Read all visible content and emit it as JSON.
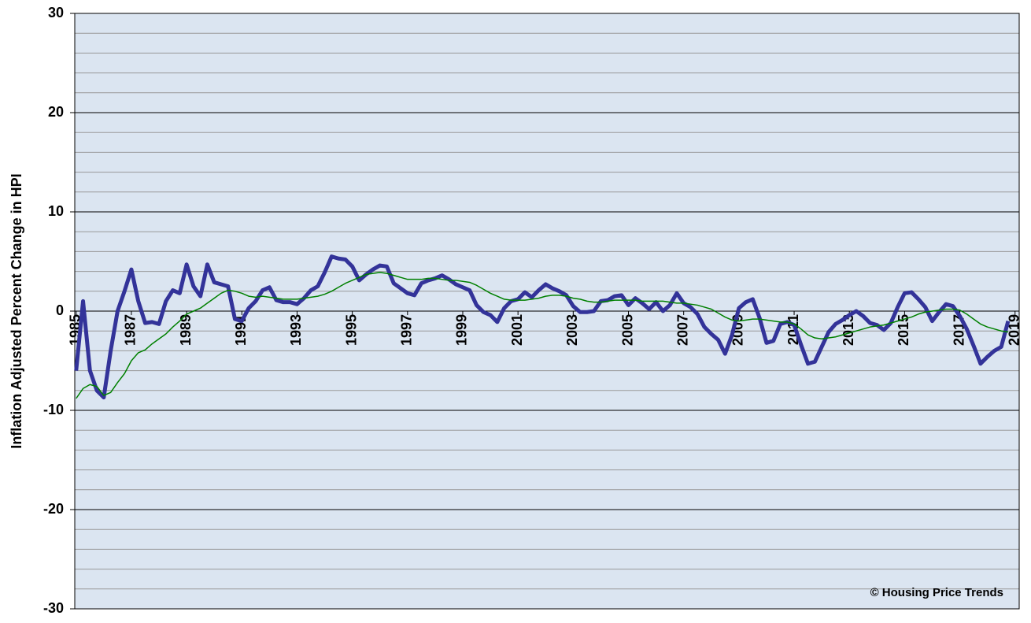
{
  "chart_data": {
    "type": "line",
    "y_label": "Inflation Adjusted Percent Change in HPI",
    "annotation": "© Housing Price Trends",
    "x": [
      1985,
      1985.25,
      1985.5,
      1985.75,
      1986,
      1986.25,
      1986.5,
      1986.75,
      1987,
      1987.25,
      1987.5,
      1987.75,
      1988,
      1988.25,
      1988.5,
      1988.75,
      1989,
      1989.25,
      1989.5,
      1989.75,
      1990,
      1990.25,
      1990.5,
      1990.75,
      1991,
      1991.25,
      1991.5,
      1991.75,
      1992,
      1992.25,
      1992.5,
      1992.75,
      1993,
      1993.25,
      1993.5,
      1993.75,
      1994,
      1994.25,
      1994.5,
      1994.75,
      1995,
      1995.25,
      1995.5,
      1995.75,
      1996,
      1996.25,
      1996.5,
      1996.75,
      1997,
      1997.25,
      1997.5,
      1997.75,
      1998,
      1998.25,
      1998.5,
      1998.75,
      1999,
      1999.25,
      1999.5,
      1999.75,
      2000,
      2000.25,
      2000.5,
      2000.75,
      2001,
      2001.25,
      2001.5,
      2001.75,
      2002,
      2002.25,
      2002.5,
      2002.75,
      2003,
      2003.25,
      2003.5,
      2003.75,
      2004,
      2004.25,
      2004.5,
      2004.75,
      2005,
      2005.25,
      2005.5,
      2005.75,
      2006,
      2006.25,
      2006.5,
      2006.75,
      2007,
      2007.25,
      2007.5,
      2007.75,
      2008,
      2008.25,
      2008.5,
      2008.75,
      2009,
      2009.25,
      2009.5,
      2009.75,
      2010,
      2010.25,
      2010.5,
      2010.75,
      2011,
      2011.25,
      2011.5,
      2011.75,
      2012,
      2012.25,
      2012.5,
      2012.75,
      2013,
      2013.25,
      2013.5,
      2013.75,
      2014,
      2014.25,
      2014.5,
      2014.75,
      2015,
      2015.25,
      2015.5,
      2015.75,
      2016,
      2016.25,
      2016.5,
      2016.75,
      2017,
      2017.25,
      2017.5,
      2017.75,
      2018,
      2018.25,
      2018.5,
      2018.75
    ],
    "series": [
      {
        "color": "#333399",
        "width": 5,
        "values": [
          -6,
          1,
          -6,
          -8,
          -8.7,
          -4,
          0,
          2,
          4.2,
          1,
          -1.2,
          -1.1,
          -1.3,
          1,
          2.1,
          1.8,
          4.7,
          2.5,
          1.5,
          4.7,
          2.9,
          2.7,
          2.5,
          -0.8,
          -1,
          0.3,
          1,
          2.1,
          2.4,
          1.1,
          0.9,
          0.9,
          0.7,
          1.3,
          2.1,
          2.5,
          3.9,
          5.5,
          5.3,
          5.2,
          4.5,
          3.1,
          3.7,
          4.2,
          4.6,
          4.5,
          2.8,
          2.3,
          1.8,
          1.6,
          2.8,
          3.1,
          3.3,
          3.6,
          3.2,
          2.7,
          2.4,
          2.1,
          0.6,
          -0.1,
          -0.4,
          -1.1,
          0.3,
          1,
          1.2,
          1.9,
          1.4,
          2.1,
          2.7,
          2.3,
          2,
          1.6,
          0.5,
          -0.1,
          -0.1,
          0,
          1,
          1.1,
          1.5,
          1.6,
          0.6,
          1.3,
          0.8,
          0.2,
          0.9,
          0,
          0.6,
          1.8,
          0.8,
          0.4,
          -0.3,
          -1.6,
          -2.3,
          -2.9,
          -4.3,
          -2.4,
          0.3,
          0.9,
          1.2,
          -0.7,
          -3.2,
          -3,
          -1.3,
          -1.1,
          -1.4,
          -3.4,
          -5.3,
          -5.1,
          -3.6,
          -2.1,
          -1.3,
          -0.9,
          -0.4,
          0,
          -0.5,
          -1.2,
          -1.4,
          -1.9,
          -1.2,
          0.4,
          1.8,
          1.9,
          1.2,
          0.4,
          -1,
          -0.1,
          0.7,
          0.5,
          -0.5,
          -1.8,
          -3.5,
          -5.3,
          -4.6,
          -4,
          -3.6,
          -1
        ]
      },
      {
        "color": "#008000",
        "width": 1.5,
        "values": [
          -8.8,
          -7.8,
          -7.4,
          -7.6,
          -8.5,
          -8.2,
          -7.2,
          -6.3,
          -5,
          -4.2,
          -3.9,
          -3.3,
          -2.8,
          -2.3,
          -1.6,
          -1,
          -0.3,
          0,
          0.3,
          0.8,
          1.3,
          1.8,
          2.1,
          2,
          1.8,
          1.5,
          1.4,
          1.5,
          1.4,
          1.3,
          1.2,
          1.2,
          1.2,
          1.3,
          1.4,
          1.5,
          1.7,
          2,
          2.4,
          2.8,
          3.1,
          3.4,
          3.7,
          3.8,
          3.9,
          3.8,
          3.6,
          3.4,
          3.2,
          3.2,
          3.2,
          3.3,
          3.3,
          3.2,
          3.1,
          3.1,
          3,
          2.9,
          2.6,
          2.2,
          1.8,
          1.5,
          1.2,
          1.1,
          1.1,
          1.1,
          1.2,
          1.3,
          1.5,
          1.6,
          1.6,
          1.5,
          1.3,
          1.2,
          1,
          0.9,
          0.9,
          1,
          1.1,
          1.1,
          1.1,
          1.1,
          1,
          1,
          1,
          1,
          0.9,
          0.8,
          0.8,
          0.7,
          0.6,
          0.4,
          0.2,
          -0.2,
          -0.6,
          -0.9,
          -1,
          -0.9,
          -0.8,
          -0.8,
          -0.9,
          -1,
          -1.1,
          -1.1,
          -1.3,
          -1.8,
          -2.4,
          -2.7,
          -2.8,
          -2.7,
          -2.6,
          -2.4,
          -2.2,
          -2,
          -1.8,
          -1.6,
          -1.5,
          -1.4,
          -1.2,
          -1,
          -0.8,
          -0.6,
          -0.3,
          -0.1,
          0,
          0.1,
          0.2,
          0.2,
          0.1,
          -0.3,
          -0.8,
          -1.3,
          -1.6,
          -1.8,
          -2,
          -2.1
        ]
      }
    ],
    "xlim": [
      1984.95,
      2019.15
    ],
    "xticks": [
      1985,
      1987,
      1989,
      1991,
      1993,
      1995,
      1997,
      1999,
      2001,
      2003,
      2005,
      2007,
      2009,
      2011,
      2013,
      2015,
      2017,
      2019
    ],
    "ylim": [
      -30,
      30
    ],
    "yticks": [
      -30,
      -20,
      -10,
      0,
      10,
      20,
      30
    ],
    "yminor": [
      -28,
      -26,
      -24,
      -22,
      -18,
      -16,
      -14,
      -12,
      -8,
      -6,
      -4,
      -2,
      2,
      4,
      6,
      8,
      12,
      14,
      16,
      18,
      22,
      24,
      26,
      28
    ],
    "background": "#dbe5f1",
    "grid": true
  }
}
